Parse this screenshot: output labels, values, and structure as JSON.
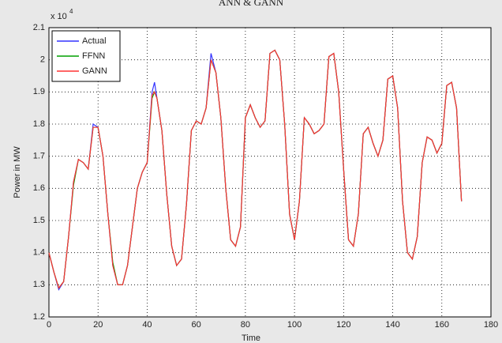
{
  "chart_data": {
    "type": "line",
    "title": "ANN & GANN",
    "x_label": "Time",
    "y_label": "Power in MW",
    "y_multiplier": {
      "base": "x 10",
      "exponent": "4"
    },
    "x": [
      0,
      2,
      4,
      6,
      8,
      10,
      12,
      14,
      16,
      18,
      20,
      22,
      24,
      26,
      28,
      30,
      32,
      34,
      36,
      38,
      40,
      42,
      43,
      44,
      46,
      48,
      50,
      52,
      54,
      56,
      58,
      60,
      62,
      64,
      66,
      68,
      70,
      72,
      74,
      76,
      78,
      80,
      82,
      84,
      86,
      88,
      90,
      92,
      94,
      96,
      98,
      100,
      102,
      104,
      106,
      108,
      110,
      112,
      114,
      116,
      118,
      120,
      122,
      124,
      126,
      128,
      130,
      132,
      134,
      136,
      138,
      140,
      142,
      144,
      146,
      148,
      150,
      152,
      154,
      156,
      158,
      160,
      162,
      164,
      166,
      168
    ],
    "series": [
      {
        "name": "Actual",
        "color": "#3333ff",
        "values": [
          1.4,
          1.34,
          1.285,
          1.31,
          1.45,
          1.62,
          1.69,
          1.68,
          1.66,
          1.8,
          1.79,
          1.7,
          1.52,
          1.36,
          1.3,
          1.3,
          1.36,
          1.48,
          1.6,
          1.65,
          1.68,
          1.9,
          1.93,
          1.88,
          1.78,
          1.58,
          1.42,
          1.36,
          1.38,
          1.55,
          1.78,
          1.81,
          1.8,
          1.85,
          2.02,
          1.96,
          1.82,
          1.6,
          1.44,
          1.42,
          1.48,
          1.82,
          1.86,
          1.82,
          1.79,
          1.81,
          2.02,
          2.03,
          2.0,
          1.8,
          1.52,
          1.44,
          1.56,
          1.82,
          1.8,
          1.77,
          1.78,
          1.8,
          2.01,
          2.02,
          1.9,
          1.66,
          1.44,
          1.42,
          1.52,
          1.77,
          1.79,
          1.74,
          1.7,
          1.75,
          1.94,
          1.95,
          1.85,
          1.56,
          1.4,
          1.38,
          1.45,
          1.68,
          1.76,
          1.75,
          1.71,
          1.74,
          1.92,
          1.93,
          1.85,
          1.56
        ]
      },
      {
        "name": "FFNN",
        "color": "#00a000",
        "values": [
          1.4,
          1.34,
          1.29,
          1.31,
          1.45,
          1.61,
          1.69,
          1.68,
          1.66,
          1.79,
          1.79,
          1.7,
          1.52,
          1.37,
          1.3,
          1.3,
          1.36,
          1.48,
          1.6,
          1.65,
          1.68,
          1.88,
          1.9,
          1.88,
          1.78,
          1.58,
          1.42,
          1.36,
          1.38,
          1.55,
          1.78,
          1.81,
          1.8,
          1.85,
          2.0,
          1.96,
          1.82,
          1.6,
          1.44,
          1.42,
          1.48,
          1.82,
          1.86,
          1.82,
          1.79,
          1.81,
          2.02,
          2.03,
          2.0,
          1.8,
          1.52,
          1.44,
          1.56,
          1.82,
          1.8,
          1.77,
          1.78,
          1.8,
          2.01,
          2.02,
          1.9,
          1.66,
          1.44,
          1.42,
          1.52,
          1.77,
          1.79,
          1.74,
          1.7,
          1.75,
          1.94,
          1.95,
          1.85,
          1.56,
          1.4,
          1.38,
          1.45,
          1.68,
          1.76,
          1.75,
          1.71,
          1.74,
          1.92,
          1.93,
          1.85,
          1.56
        ]
      },
      {
        "name": "GANN",
        "color": "#ff3333",
        "values": [
          1.4,
          1.34,
          1.29,
          1.31,
          1.45,
          1.62,
          1.69,
          1.68,
          1.66,
          1.79,
          1.79,
          1.7,
          1.52,
          1.36,
          1.3,
          1.3,
          1.36,
          1.48,
          1.6,
          1.65,
          1.68,
          1.89,
          1.9,
          1.88,
          1.78,
          1.58,
          1.42,
          1.36,
          1.38,
          1.55,
          1.78,
          1.81,
          1.8,
          1.85,
          2.0,
          1.96,
          1.82,
          1.6,
          1.44,
          1.42,
          1.48,
          1.82,
          1.86,
          1.82,
          1.79,
          1.81,
          2.02,
          2.03,
          2.0,
          1.8,
          1.52,
          1.44,
          1.56,
          1.82,
          1.8,
          1.77,
          1.78,
          1.8,
          2.01,
          2.02,
          1.9,
          1.66,
          1.44,
          1.42,
          1.52,
          1.77,
          1.79,
          1.74,
          1.7,
          1.75,
          1.94,
          1.95,
          1.85,
          1.56,
          1.4,
          1.38,
          1.45,
          1.68,
          1.76,
          1.75,
          1.71,
          1.74,
          1.92,
          1.93,
          1.85,
          1.56
        ]
      }
    ],
    "xlim": [
      0,
      180
    ],
    "xticks": [
      0,
      20,
      40,
      60,
      80,
      100,
      120,
      140,
      160,
      180
    ],
    "ylim": [
      1.2,
      2.1
    ],
    "yticks": [
      1.2,
      1.3,
      1.4,
      1.5,
      1.6,
      1.7,
      1.8,
      1.9,
      {
        "value": 2,
        "label": "2"
      },
      2.1
    ],
    "grid": true,
    "legend": "upper-left"
  }
}
